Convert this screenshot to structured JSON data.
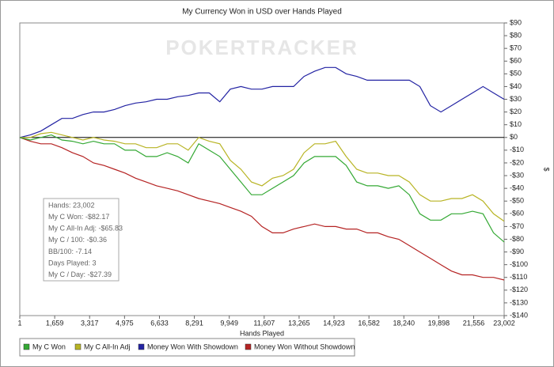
{
  "chart_data": {
    "type": "line",
    "title": "My Currency Won in USD over Hands Played",
    "watermark": "POKERTRACKER",
    "xlabel": "Hands Played",
    "ylabel": "$",
    "x": [
      1,
      500,
      1000,
      1500,
      2000,
      2500,
      3000,
      3500,
      4000,
      4500,
      5000,
      5500,
      6000,
      6500,
      7000,
      7500,
      8000,
      8500,
      9000,
      9500,
      10000,
      10500,
      11000,
      11500,
      12000,
      12500,
      13000,
      13500,
      14000,
      14500,
      15000,
      15500,
      16000,
      16500,
      17000,
      17500,
      18000,
      18500,
      19000,
      19500,
      20000,
      20500,
      21000,
      21500,
      22000,
      22500,
      23002
    ],
    "series": [
      {
        "name": "My C Won",
        "color": "#33a833",
        "values": [
          0,
          -2,
          0,
          2,
          -2,
          -3,
          -5,
          -3,
          -5,
          -5,
          -10,
          -10,
          -15,
          -15,
          -12,
          -15,
          -20,
          -5,
          -10,
          -15,
          -25,
          -35,
          -45,
          -45,
          -40,
          -35,
          -30,
          -20,
          -15,
          -15,
          -15,
          -22,
          -35,
          -38,
          -38,
          -40,
          -38,
          -45,
          -60,
          -65,
          -65,
          -60,
          -60,
          -58,
          -60,
          -75,
          -82.17
        ]
      },
      {
        "name": "My C All-In Adj",
        "color": "#b8b424",
        "values": [
          0,
          0,
          3,
          4,
          2,
          0,
          -2,
          0,
          -2,
          -3,
          -5,
          -5,
          -8,
          -8,
          -5,
          -5,
          -10,
          0,
          -3,
          -5,
          -18,
          -25,
          -35,
          -38,
          -32,
          -30,
          -25,
          -12,
          -5,
          -5,
          -3,
          -15,
          -25,
          -28,
          -28,
          -30,
          -30,
          -35,
          -45,
          -50,
          -50,
          -48,
          -48,
          -45,
          -50,
          -60,
          -65.83
        ]
      },
      {
        "name": "Money Won With Showdown",
        "color": "#2323a3",
        "values": [
          0,
          2,
          5,
          10,
          15,
          15,
          18,
          20,
          20,
          22,
          25,
          27,
          28,
          30,
          30,
          32,
          33,
          35,
          35,
          28,
          38,
          40,
          38,
          38,
          40,
          40,
          40,
          48,
          52,
          55,
          55,
          50,
          48,
          45,
          45,
          45,
          45,
          45,
          40,
          25,
          20,
          25,
          30,
          35,
          40,
          35,
          30
        ]
      },
      {
        "name": "Money Won Without Showdown",
        "color": "#b52323",
        "values": [
          0,
          -3,
          -5,
          -5,
          -8,
          -12,
          -15,
          -20,
          -22,
          -25,
          -28,
          -32,
          -35,
          -38,
          -40,
          -42,
          -45,
          -48,
          -50,
          -52,
          -55,
          -58,
          -62,
          -70,
          -75,
          -75,
          -72,
          -70,
          -68,
          -70,
          -70,
          -72,
          -72,
          -75,
          -75,
          -78,
          -80,
          -85,
          -90,
          -95,
          -100,
          -105,
          -108,
          -108,
          -110,
          -110,
          -112
        ]
      }
    ],
    "xlim": [
      1,
      23002
    ],
    "xticks": [
      1,
      {
        "value": 1659,
        "label": "1,659"
      },
      {
        "value": 3317,
        "label": "3,317"
      },
      {
        "value": 4975,
        "label": "4,975"
      },
      {
        "value": 6633,
        "label": "6,633"
      },
      {
        "value": 8291,
        "label": "8,291"
      },
      {
        "value": 9949,
        "label": "9,949"
      },
      {
        "value": 11607,
        "label": "11,607"
      },
      {
        "value": 13265,
        "label": "13,265"
      },
      {
        "value": 14923,
        "label": "14,923"
      },
      {
        "value": 16582,
        "label": "16,582"
      },
      {
        "value": 18240,
        "label": "18,240"
      },
      {
        "value": 19898,
        "label": "19,898"
      },
      {
        "value": 21556,
        "label": "21,556"
      },
      {
        "value": 23002,
        "label": "23,002"
      }
    ],
    "ylim": [
      -140,
      90
    ],
    "yticks": [
      {
        "value": 90,
        "label": "$90"
      },
      {
        "value": 80,
        "label": "$80"
      },
      {
        "value": 70,
        "label": "$70"
      },
      {
        "value": 60,
        "label": "$60"
      },
      {
        "value": 50,
        "label": "$50"
      },
      {
        "value": 40,
        "label": "$40"
      },
      {
        "value": 30,
        "label": "$30"
      },
      {
        "value": 20,
        "label": "$20"
      },
      {
        "value": 10,
        "label": "$10"
      },
      {
        "value": 0,
        "label": "$0"
      },
      {
        "value": -10,
        "label": "-$10"
      },
      {
        "value": -20,
        "label": "-$20"
      },
      {
        "value": -30,
        "label": "-$30"
      },
      {
        "value": -40,
        "label": "-$40"
      },
      {
        "value": -50,
        "label": "-$50"
      },
      {
        "value": -60,
        "label": "-$60"
      },
      {
        "value": -70,
        "label": "-$70"
      },
      {
        "value": -80,
        "label": "-$80"
      },
      {
        "value": -90,
        "label": "-$90"
      },
      {
        "value": -100,
        "label": "-$100"
      },
      {
        "value": -110,
        "label": "-$110"
      },
      {
        "value": -120,
        "label": "-$120"
      },
      {
        "value": -130,
        "label": "-$130"
      },
      {
        "value": -140,
        "label": "-$140"
      }
    ],
    "yaxis_side": "right",
    "grid": false,
    "legend": "bottom",
    "annotations": [
      "Hands: 23,002",
      "My C Won: -$82.17",
      "My C All-In Adj: -$65.83",
      "My C / 100: -$0.36",
      "BB/100: -7.14",
      "Days Played: 3",
      "My C / Day: -$27.39"
    ]
  }
}
